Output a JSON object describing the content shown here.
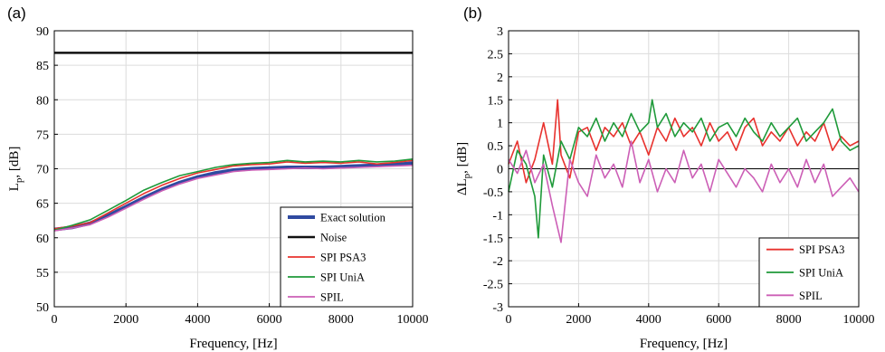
{
  "chart_data": [
    {
      "panel_label": "(a)",
      "type": "line",
      "xlabel": "Frequency, [Hz]",
      "ylabel_main": "L",
      "ylabel_sub": "p",
      "ylabel_suffix": ", [dB]",
      "xlim": [
        0,
        10000
      ],
      "ylim": [
        50,
        90
      ],
      "xticks": [
        0,
        2000,
        4000,
        6000,
        8000,
        10000
      ],
      "yticks": [
        50,
        55,
        60,
        65,
        70,
        75,
        80,
        85,
        90
      ],
      "grid": true,
      "legend": "bottom-right",
      "series": [
        {
          "name": "Exact solution",
          "color": "#2f4aa0",
          "x": [
            0,
            500,
            1000,
            1500,
            2000,
            2500,
            3000,
            3500,
            4000,
            4500,
            5000,
            5500,
            6000,
            6500,
            7000,
            7500,
            8000,
            8500,
            9000,
            9500,
            10000
          ],
          "y": [
            61.2,
            61.5,
            62.1,
            63.2,
            64.5,
            65.8,
            67.0,
            68.0,
            68.8,
            69.4,
            69.8,
            70.0,
            70.1,
            70.2,
            70.2,
            70.2,
            70.3,
            70.4,
            70.5,
            70.6,
            70.8
          ]
        },
        {
          "name": "Noise",
          "color": "#111111",
          "x": [
            0,
            10000
          ],
          "y": [
            86.8,
            86.8
          ]
        },
        {
          "name": "SPI PSA3",
          "color": "#e8322e",
          "x": [
            0,
            500,
            1000,
            1500,
            2000,
            2500,
            3000,
            3500,
            4000,
            4500,
            5000,
            5500,
            6000,
            6500,
            7000,
            7500,
            8000,
            8500,
            9000,
            9500,
            10000
          ],
          "y": [
            61.3,
            61.7,
            62.2,
            63.6,
            65.0,
            66.4,
            67.6,
            68.6,
            69.4,
            69.9,
            70.4,
            70.6,
            70.7,
            71.0,
            70.8,
            70.9,
            70.8,
            71.0,
            70.7,
            70.9,
            71.2
          ]
        },
        {
          "name": "SPI UniA",
          "color": "#1f9a3a",
          "x": [
            0,
            500,
            1000,
            1500,
            2000,
            2500,
            3000,
            3500,
            4000,
            4500,
            5000,
            5500,
            6000,
            6500,
            7000,
            7500,
            8000,
            8500,
            9000,
            9500,
            10000
          ],
          "y": [
            61.1,
            61.8,
            62.6,
            64.0,
            65.4,
            66.9,
            68.0,
            69.0,
            69.6,
            70.2,
            70.6,
            70.8,
            70.9,
            71.2,
            71.0,
            71.1,
            71.0,
            71.2,
            71.0,
            71.1,
            71.4
          ]
        },
        {
          "name": "SPIL",
          "color": "#cc5fb6",
          "x": [
            0,
            500,
            1000,
            1500,
            2000,
            2500,
            3000,
            3500,
            4000,
            4500,
            5000,
            5500,
            6000,
            6500,
            7000,
            7500,
            8000,
            8500,
            9000,
            9500,
            10000
          ],
          "y": [
            61.0,
            61.4,
            61.9,
            63.0,
            64.3,
            65.6,
            66.8,
            67.8,
            68.6,
            69.1,
            69.6,
            69.8,
            69.9,
            70.0,
            70.1,
            70.0,
            70.1,
            70.2,
            70.3,
            70.4,
            70.5
          ]
        }
      ]
    },
    {
      "panel_label": "(b)",
      "type": "line",
      "xlabel": "Frequency, [Hz]",
      "ylabel_main": "ΔL",
      "ylabel_sub": "p",
      "ylabel_suffix": ", [dB]",
      "xlim": [
        0,
        10000
      ],
      "ylim": [
        -3,
        3
      ],
      "xticks": [
        0,
        2000,
        4000,
        6000,
        8000,
        10000
      ],
      "yticks": [
        -3,
        -2.5,
        -2,
        -1.5,
        -1,
        -0.5,
        0,
        0.5,
        1,
        1.5,
        2,
        2.5,
        3
      ],
      "grid": true,
      "legend": "bottom-right",
      "reference_line": 0,
      "series": [
        {
          "name": "SPI PSA3",
          "color": "#e8322e",
          "x": [
            0,
            250,
            500,
            750,
            1000,
            1250,
            1400,
            1500,
            1750,
            2000,
            2250,
            2500,
            2750,
            3000,
            3250,
            3500,
            3750,
            4000,
            4250,
            4500,
            4750,
            5000,
            5250,
            5500,
            5750,
            6000,
            6250,
            6500,
            6750,
            7000,
            7250,
            7500,
            7750,
            8000,
            8250,
            8500,
            8750,
            9000,
            9250,
            9500,
            9750,
            10000
          ],
          "y": [
            0.1,
            0.6,
            -0.3,
            0.2,
            1.0,
            0.1,
            1.5,
            0.3,
            -0.2,
            0.8,
            0.9,
            0.4,
            0.9,
            0.7,
            1.0,
            0.5,
            0.8,
            0.3,
            0.9,
            0.6,
            1.1,
            0.7,
            0.9,
            0.5,
            1.0,
            0.6,
            0.8,
            0.4,
            0.9,
            1.1,
            0.5,
            0.8,
            0.6,
            0.9,
            0.5,
            0.8,
            0.6,
            1.0,
            0.4,
            0.7,
            0.5,
            0.6
          ]
        },
        {
          "name": "SPI UniA",
          "color": "#1f9a3a",
          "x": [
            0,
            250,
            500,
            750,
            850,
            1000,
            1250,
            1500,
            1750,
            2000,
            2250,
            2500,
            2750,
            3000,
            3250,
            3500,
            3750,
            4000,
            4100,
            4250,
            4500,
            4750,
            5000,
            5250,
            5500,
            5750,
            6000,
            6250,
            6500,
            6750,
            7000,
            7250,
            7500,
            7750,
            8000,
            8250,
            8500,
            8750,
            9000,
            9250,
            9500,
            9750,
            10000
          ],
          "y": [
            -0.5,
            0.4,
            0.1,
            -0.6,
            -1.5,
            0.3,
            -0.4,
            0.6,
            0.2,
            0.9,
            0.7,
            1.1,
            0.6,
            1.0,
            0.7,
            1.2,
            0.8,
            1.0,
            1.5,
            0.9,
            1.2,
            0.7,
            1.0,
            0.8,
            1.1,
            0.6,
            0.9,
            1.0,
            0.7,
            1.1,
            0.8,
            0.6,
            1.0,
            0.7,
            0.9,
            1.1,
            0.6,
            0.8,
            1.0,
            1.3,
            0.6,
            0.4,
            0.5
          ]
        },
        {
          "name": "SPIL",
          "color": "#cc5fb6",
          "x": [
            0,
            250,
            500,
            750,
            1000,
            1250,
            1500,
            1750,
            2000,
            2250,
            2500,
            2750,
            3000,
            3250,
            3500,
            3750,
            4000,
            4250,
            4500,
            4750,
            5000,
            5250,
            5500,
            5750,
            6000,
            6250,
            6500,
            6750,
            7000,
            7250,
            7500,
            7750,
            8000,
            8250,
            8500,
            8750,
            9000,
            9250,
            9500,
            9750,
            10000
          ],
          "y": [
            0.2,
            -0.1,
            0.4,
            -0.3,
            0.1,
            -0.8,
            -1.6,
            0.2,
            -0.3,
            -0.6,
            0.3,
            -0.2,
            0.1,
            -0.4,
            0.6,
            -0.3,
            0.2,
            -0.5,
            0.0,
            -0.3,
            0.4,
            -0.2,
            0.1,
            -0.5,
            0.2,
            -0.1,
            -0.4,
            0.0,
            -0.2,
            -0.5,
            0.1,
            -0.3,
            0.0,
            -0.4,
            0.2,
            -0.3,
            0.1,
            -0.6,
            -0.4,
            -0.2,
            -0.5
          ]
        }
      ]
    }
  ]
}
